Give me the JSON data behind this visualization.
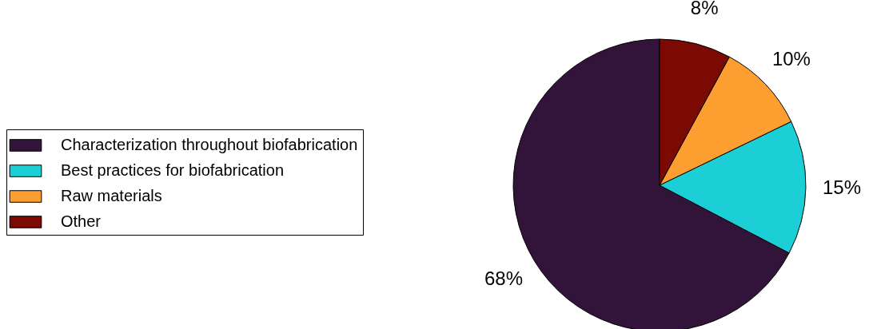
{
  "chart_data": {
    "type": "pie",
    "categories": [
      "Characterization throughout biofabrication",
      "Best practices for biofabrication",
      "Raw materials",
      "Other"
    ],
    "values": [
      68,
      15,
      10,
      8
    ],
    "colors": [
      "#32143a",
      "#1ccfd6",
      "#fd9e30",
      "#7b0a04"
    ],
    "value_labels": [
      "68%",
      "15%",
      "10%",
      "8%"
    ],
    "legend": "left"
  }
}
